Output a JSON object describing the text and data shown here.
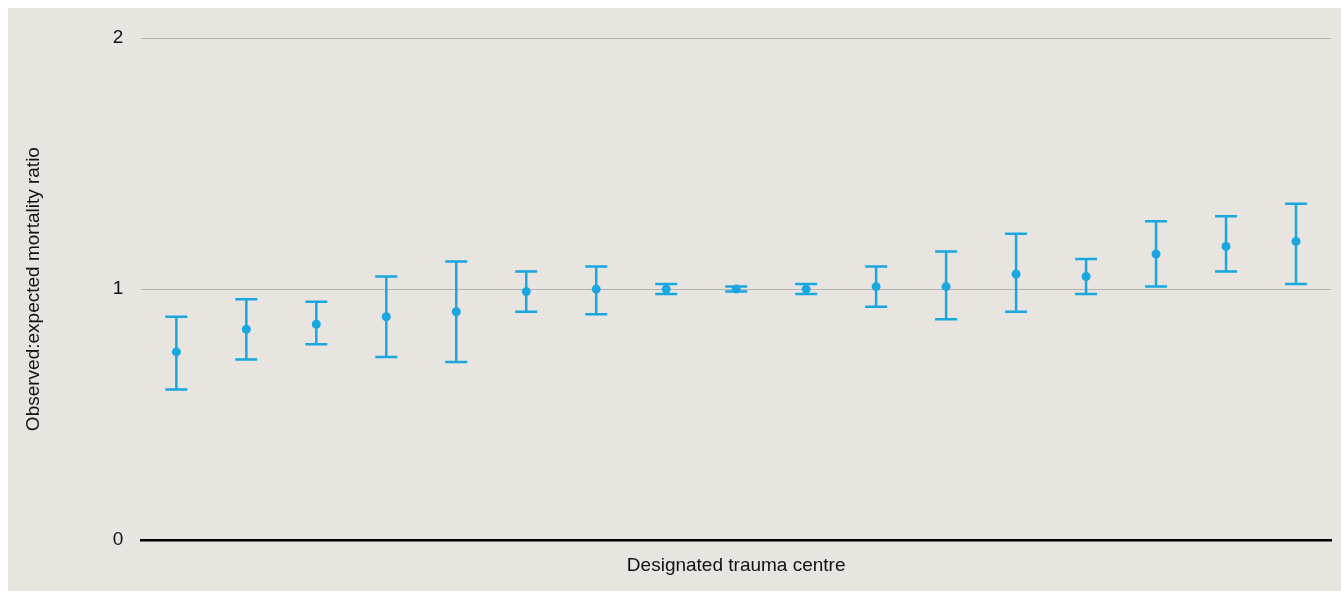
{
  "chart_data": {
    "type": "scatter",
    "xlabel": "Designated trauma centre",
    "ylabel": "Observed:expected mortality ratio",
    "categories": [
      null,
      null,
      null,
      null,
      null,
      null,
      null,
      null,
      null,
      null,
      null,
      null,
      null,
      null,
      null,
      null,
      null
    ],
    "series": [
      {
        "color": "#1aa7e0",
        "values": [
          0.75,
          0.84,
          0.86,
          0.89,
          0.91,
          0.99,
          1.0,
          1.0,
          1.0,
          1.0,
          1.01,
          1.01,
          1.06,
          1.05,
          1.14,
          1.17,
          1.19
        ],
        "errors": [
          [
            0.6,
            0.89
          ],
          [
            0.72,
            0.96
          ],
          [
            0.78,
            0.95
          ],
          [
            0.73,
            1.05
          ],
          [
            0.71,
            1.11
          ],
          [
            0.91,
            1.07
          ],
          [
            0.9,
            1.09
          ],
          [
            0.98,
            1.02
          ],
          [
            0.99,
            1.01
          ],
          [
            0.98,
            1.02
          ],
          [
            0.93,
            1.09
          ],
          [
            0.88,
            1.15
          ],
          [
            0.91,
            1.22
          ],
          [
            0.98,
            1.12
          ],
          [
            1.01,
            1.27
          ],
          [
            1.07,
            1.29
          ],
          [
            1.02,
            1.34
          ]
        ]
      }
    ],
    "ylim": [
      0,
      2
    ],
    "yticks": [
      0,
      1,
      2
    ],
    "grid": "y",
    "tick_labels": "y",
    "marker": "circle",
    "legend": false
  }
}
